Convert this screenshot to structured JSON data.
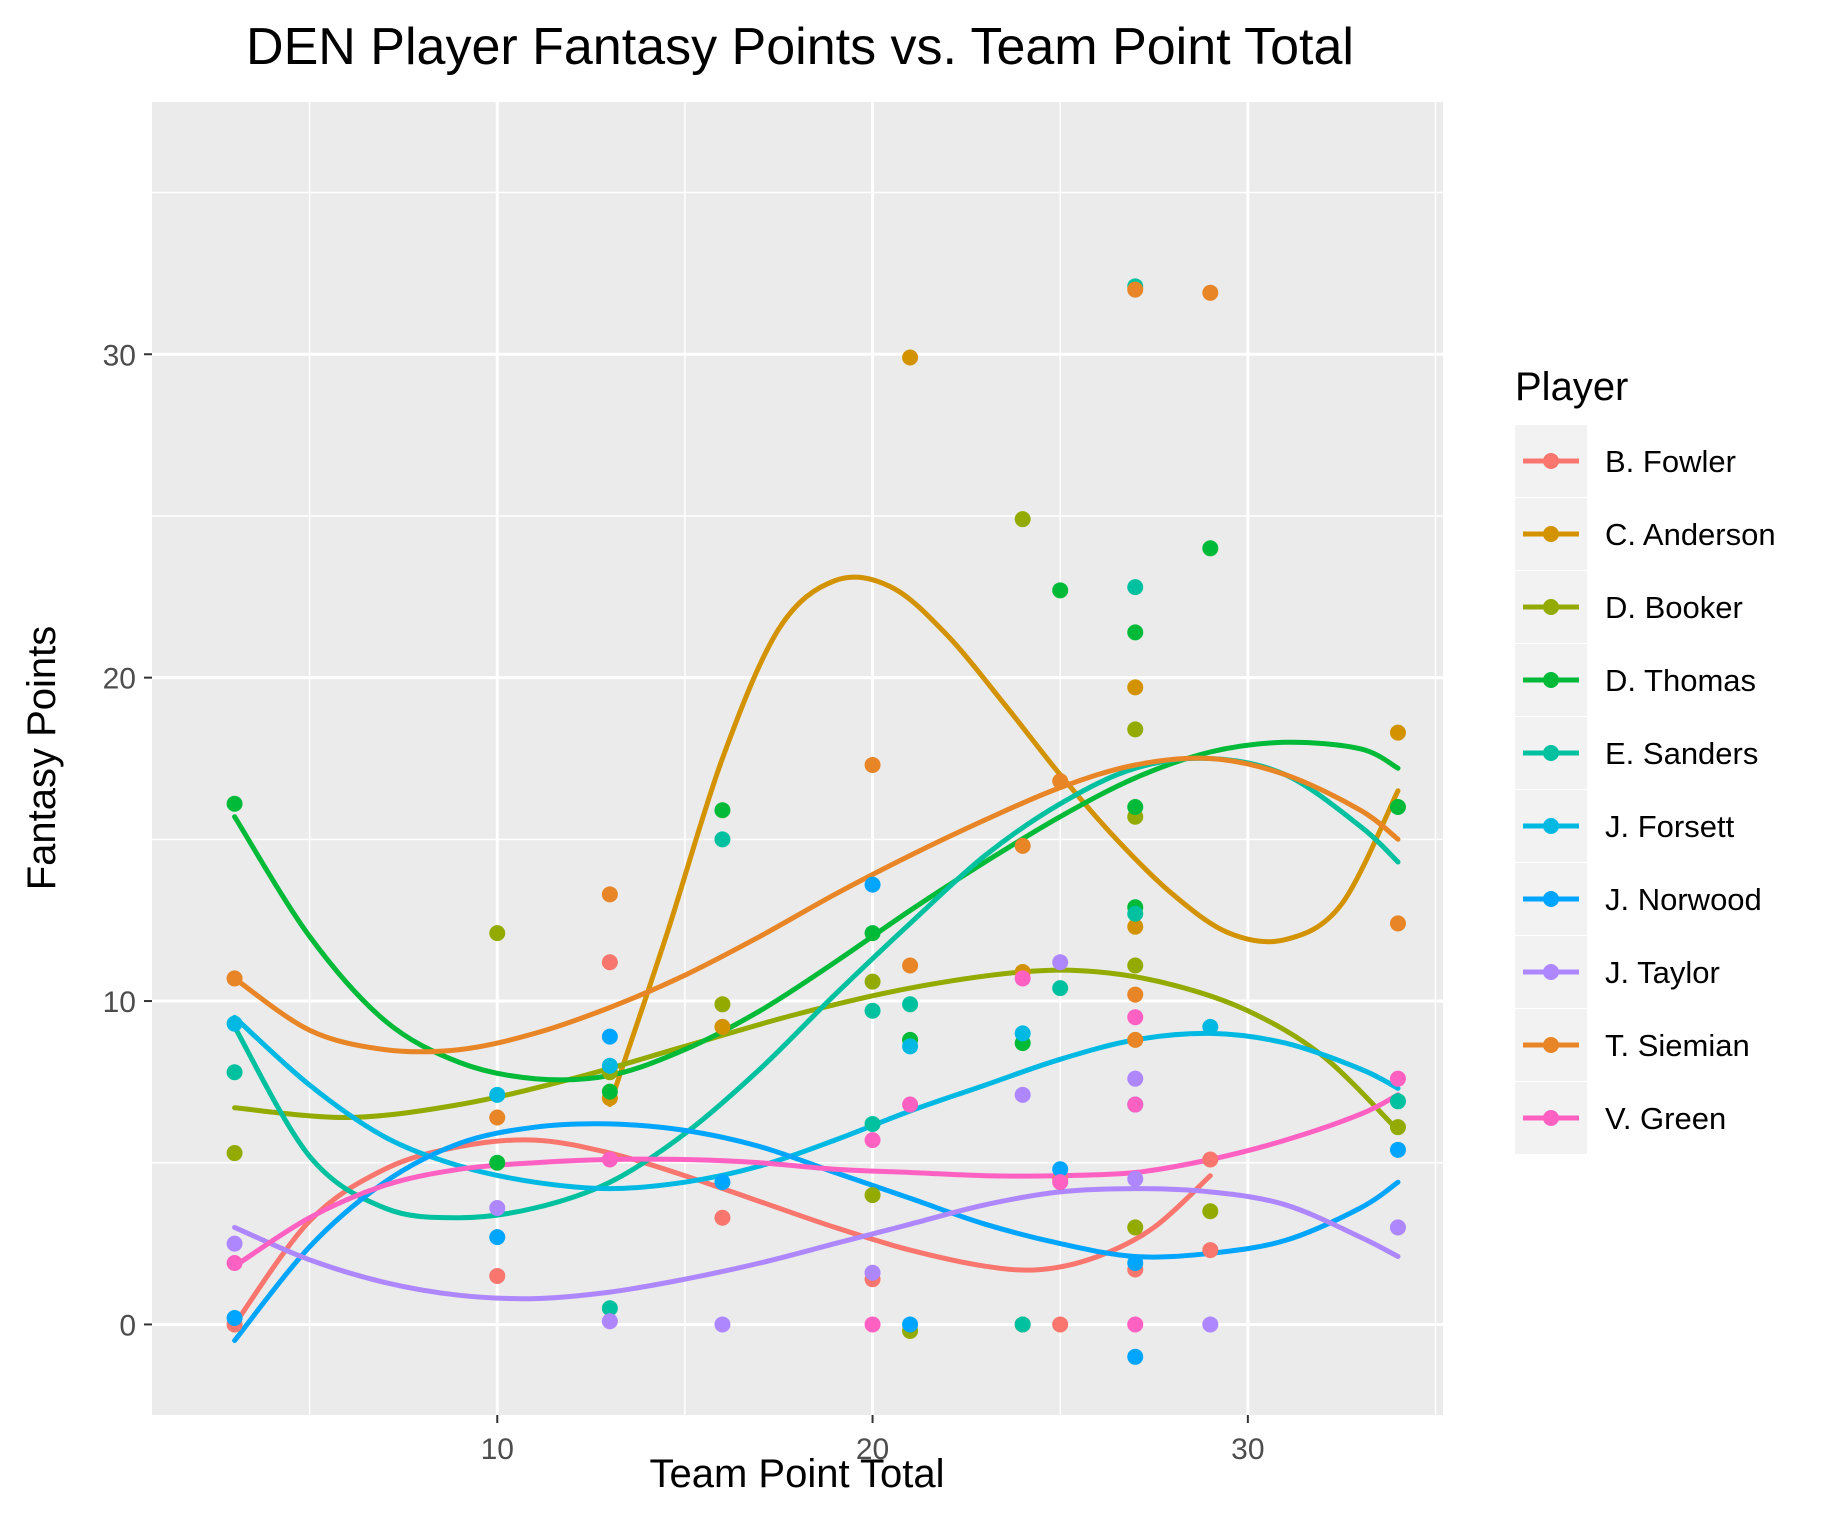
{
  "chart_data": {
    "type": "scatter",
    "title": "DEN Player Fantasy Points vs. Team Point Total",
    "xlabel": "Team Point Total",
    "ylabel": "Fantasy Points",
    "xlim": [
      0.8,
      35.2
    ],
    "ylim": [
      -2.8,
      37.8
    ],
    "x_ticks": [
      10,
      20,
      30
    ],
    "y_ticks": [
      0,
      10,
      20,
      30
    ],
    "x_minor": [
      5,
      15,
      25,
      35
    ],
    "y_minor": [
      5,
      15,
      25,
      35
    ],
    "grid": true,
    "legend_title": "Player",
    "legend_position": "right",
    "series": [
      {
        "name": "B. Fowler",
        "color": "#F8766D",
        "points": [
          [
            3,
            0
          ],
          [
            10,
            1.5
          ],
          [
            13,
            11.2
          ],
          [
            16,
            3.3
          ],
          [
            20,
            1.4
          ],
          [
            24,
            0
          ],
          [
            25,
            0
          ],
          [
            25,
            4.5
          ],
          [
            27,
            1.7
          ],
          [
            29,
            2.3
          ],
          [
            29,
            5.1
          ]
        ],
        "smooth": [
          [
            3,
            0
          ],
          [
            5,
            3.2
          ],
          [
            7,
            4.8
          ],
          [
            9,
            5.5
          ],
          [
            11,
            5.7
          ],
          [
            13,
            5.3
          ],
          [
            15,
            4.6
          ],
          [
            17,
            3.8
          ],
          [
            19,
            3.0
          ],
          [
            21,
            2.3
          ],
          [
            23,
            1.8
          ],
          [
            24.5,
            1.7
          ],
          [
            26,
            2.1
          ],
          [
            27.5,
            3.0
          ],
          [
            29,
            4.6
          ]
        ]
      },
      {
        "name": "C. Anderson",
        "color": "#D39200",
        "points": [
          [
            13,
            7.0
          ],
          [
            16,
            9.2
          ],
          [
            21,
            29.9
          ],
          [
            24,
            10.9
          ],
          [
            27,
            12.3
          ],
          [
            27,
            19.7
          ],
          [
            34,
            18.3
          ]
        ],
        "smooth": [
          [
            13,
            6.8
          ],
          [
            14.5,
            12
          ],
          [
            16,
            17.5
          ],
          [
            17.5,
            21.5
          ],
          [
            19,
            23.0
          ],
          [
            20.5,
            22.8
          ],
          [
            22,
            21.3
          ],
          [
            23.5,
            19.2
          ],
          [
            25,
            17.0
          ],
          [
            26.5,
            15.0
          ],
          [
            28,
            13.3
          ],
          [
            29.5,
            12.1
          ],
          [
            31,
            11.9
          ],
          [
            32.5,
            13.0
          ],
          [
            34,
            16.5
          ]
        ]
      },
      {
        "name": "D. Booker",
        "color": "#93AA00",
        "points": [
          [
            3,
            5.3
          ],
          [
            10,
            12.1
          ],
          [
            13,
            7.8
          ],
          [
            16,
            9.9
          ],
          [
            20,
            4.0
          ],
          [
            20,
            10.6
          ],
          [
            21,
            -0.2
          ],
          [
            24,
            24.9
          ],
          [
            27,
            18.4
          ],
          [
            27,
            15.7
          ],
          [
            27,
            11.1
          ],
          [
            27,
            3.0
          ],
          [
            29,
            3.5
          ],
          [
            34,
            6.1
          ]
        ],
        "smooth": [
          [
            3,
            6.7
          ],
          [
            6,
            6.4
          ],
          [
            9,
            6.8
          ],
          [
            12,
            7.6
          ],
          [
            15,
            8.6
          ],
          [
            18,
            9.6
          ],
          [
            21,
            10.4
          ],
          [
            24,
            10.9
          ],
          [
            26,
            10.9
          ],
          [
            28,
            10.5
          ],
          [
            30,
            9.7
          ],
          [
            32,
            8.3
          ],
          [
            34,
            6.0
          ]
        ]
      },
      {
        "name": "D. Thomas",
        "color": "#00BA38",
        "points": [
          [
            3,
            16.1
          ],
          [
            10,
            5.0
          ],
          [
            13,
            7.2
          ],
          [
            16,
            15.9
          ],
          [
            20,
            12.1
          ],
          [
            21,
            8.8
          ],
          [
            24,
            8.7
          ],
          [
            25,
            22.7
          ],
          [
            27,
            21.4
          ],
          [
            27,
            16.0
          ],
          [
            27,
            12.9
          ],
          [
            29,
            24.0
          ],
          [
            34,
            16.0
          ]
        ],
        "smooth": [
          [
            3,
            15.7
          ],
          [
            5,
            12.0
          ],
          [
            7,
            9.4
          ],
          [
            9,
            8.1
          ],
          [
            11,
            7.6
          ],
          [
            13,
            7.7
          ],
          [
            15,
            8.5
          ],
          [
            17,
            9.7
          ],
          [
            19,
            11.2
          ],
          [
            21,
            12.8
          ],
          [
            23,
            14.3
          ],
          [
            25,
            15.7
          ],
          [
            27,
            16.9
          ],
          [
            29,
            17.7
          ],
          [
            31,
            18.0
          ],
          [
            33,
            17.8
          ],
          [
            34,
            17.2
          ]
        ]
      },
      {
        "name": "E. Sanders",
        "color": "#00C19F",
        "points": [
          [
            3,
            7.8
          ],
          [
            13,
            0.5
          ],
          [
            16,
            15.0
          ],
          [
            20,
            9.7
          ],
          [
            20,
            6.2
          ],
          [
            21,
            9.9
          ],
          [
            24,
            0
          ],
          [
            25,
            10.4
          ],
          [
            27,
            32.1
          ],
          [
            27,
            22.8
          ],
          [
            27,
            12.7
          ],
          [
            34,
            6.9
          ]
        ],
        "smooth": [
          [
            3,
            9.2
          ],
          [
            5,
            5.2
          ],
          [
            7,
            3.6
          ],
          [
            9,
            3.3
          ],
          [
            11,
            3.6
          ],
          [
            13,
            4.4
          ],
          [
            15,
            5.9
          ],
          [
            17,
            7.9
          ],
          [
            19,
            10.2
          ],
          [
            21,
            12.4
          ],
          [
            23,
            14.5
          ],
          [
            25,
            16.1
          ],
          [
            27,
            17.2
          ],
          [
            29,
            17.5
          ],
          [
            31,
            17.0
          ],
          [
            33,
            15.4
          ],
          [
            34,
            14.3
          ]
        ]
      },
      {
        "name": "J. Forsett",
        "color": "#00B9E3",
        "points": [
          [
            3,
            9.3
          ],
          [
            10,
            7.1
          ],
          [
            13,
            8.0
          ],
          [
            21,
            8.6
          ],
          [
            24,
            9.0
          ],
          [
            27,
            6.8
          ],
          [
            29,
            9.2
          ]
        ],
        "smooth": [
          [
            3,
            9.5
          ],
          [
            5,
            7.4
          ],
          [
            7,
            5.8
          ],
          [
            9,
            4.9
          ],
          [
            11,
            4.4
          ],
          [
            13,
            4.2
          ],
          [
            15,
            4.4
          ],
          [
            17,
            4.9
          ],
          [
            19,
            5.7
          ],
          [
            21,
            6.6
          ],
          [
            23,
            7.4
          ],
          [
            25,
            8.2
          ],
          [
            27,
            8.8
          ],
          [
            29,
            9.0
          ],
          [
            31,
            8.7
          ],
          [
            33,
            7.9
          ],
          [
            34,
            7.3
          ]
        ]
      },
      {
        "name": "J. Norwood",
        "color": "#00A5FF",
        "points": [
          [
            3,
            0.2
          ],
          [
            10,
            2.7
          ],
          [
            13,
            8.9
          ],
          [
            16,
            4.4
          ],
          [
            20,
            13.6
          ],
          [
            21,
            0
          ],
          [
            25,
            4.8
          ],
          [
            27,
            1.9
          ],
          [
            27,
            -1.0
          ],
          [
            34,
            5.4
          ]
        ],
        "smooth": [
          [
            3,
            -0.5
          ],
          [
            5,
            2.4
          ],
          [
            7,
            4.4
          ],
          [
            9,
            5.6
          ],
          [
            11,
            6.1
          ],
          [
            13,
            6.2
          ],
          [
            15,
            6.0
          ],
          [
            17,
            5.5
          ],
          [
            19,
            4.7
          ],
          [
            21,
            3.9
          ],
          [
            23,
            3.1
          ],
          [
            25,
            2.5
          ],
          [
            27,
            2.1
          ],
          [
            29,
            2.2
          ],
          [
            31,
            2.6
          ],
          [
            33,
            3.6
          ],
          [
            34,
            4.4
          ]
        ]
      },
      {
        "name": "J. Taylor",
        "color": "#AE87FF",
        "points": [
          [
            3,
            2.5
          ],
          [
            10,
            3.6
          ],
          [
            13,
            0.1
          ],
          [
            16,
            0
          ],
          [
            20,
            1.6
          ],
          [
            24,
            7.1
          ],
          [
            25,
            11.2
          ],
          [
            27,
            7.6
          ],
          [
            27,
            4.5
          ],
          [
            29,
            0
          ],
          [
            34,
            3.0
          ]
        ],
        "smooth": [
          [
            3,
            3.0
          ],
          [
            5,
            2.0
          ],
          [
            7,
            1.3
          ],
          [
            9,
            0.9
          ],
          [
            11,
            0.8
          ],
          [
            13,
            1.0
          ],
          [
            15,
            1.4
          ],
          [
            17,
            1.9
          ],
          [
            19,
            2.5
          ],
          [
            21,
            3.1
          ],
          [
            23,
            3.7
          ],
          [
            25,
            4.1
          ],
          [
            27,
            4.2
          ],
          [
            29,
            4.1
          ],
          [
            31,
            3.7
          ],
          [
            33,
            2.7
          ],
          [
            34,
            2.1
          ]
        ]
      },
      {
        "name": "T. Siemian",
        "color": "#E88526",
        "points": [
          [
            3,
            10.7
          ],
          [
            10,
            6.4
          ],
          [
            13,
            13.3
          ],
          [
            20,
            17.3
          ],
          [
            21,
            11.1
          ],
          [
            24,
            14.8
          ],
          [
            25,
            16.8
          ],
          [
            27,
            32.0
          ],
          [
            27,
            10.2
          ],
          [
            27,
            8.8
          ],
          [
            29,
            31.9
          ],
          [
            34,
            12.4
          ]
        ],
        "smooth": [
          [
            3,
            10.7
          ],
          [
            5,
            9.1
          ],
          [
            7,
            8.5
          ],
          [
            9,
            8.5
          ],
          [
            11,
            9.0
          ],
          [
            13,
            9.8
          ],
          [
            15,
            10.8
          ],
          [
            17,
            12.0
          ],
          [
            19,
            13.3
          ],
          [
            21,
            14.5
          ],
          [
            23,
            15.6
          ],
          [
            25,
            16.6
          ],
          [
            27,
            17.3
          ],
          [
            29,
            17.5
          ],
          [
            31,
            17.0
          ],
          [
            33,
            15.9
          ],
          [
            34,
            15.0
          ]
        ]
      },
      {
        "name": "V. Green",
        "color": "#FF61C3",
        "points": [
          [
            3,
            1.9
          ],
          [
            13,
            5.1
          ],
          [
            20,
            0
          ],
          [
            20,
            5.7
          ],
          [
            21,
            6.8
          ],
          [
            24,
            10.7
          ],
          [
            25,
            4.4
          ],
          [
            27,
            9.5
          ],
          [
            27,
            6.8
          ],
          [
            27,
            0
          ],
          [
            34,
            7.6
          ]
        ],
        "smooth": [
          [
            3,
            1.8
          ],
          [
            5,
            3.3
          ],
          [
            7,
            4.3
          ],
          [
            9,
            4.8
          ],
          [
            11,
            5.0
          ],
          [
            13,
            5.1
          ],
          [
            15,
            5.1
          ],
          [
            17,
            5.0
          ],
          [
            19,
            4.8
          ],
          [
            21,
            4.7
          ],
          [
            23,
            4.6
          ],
          [
            25,
            4.6
          ],
          [
            27,
            4.7
          ],
          [
            29,
            5.1
          ],
          [
            31,
            5.7
          ],
          [
            33,
            6.5
          ],
          [
            34,
            7.1
          ]
        ]
      }
    ]
  }
}
